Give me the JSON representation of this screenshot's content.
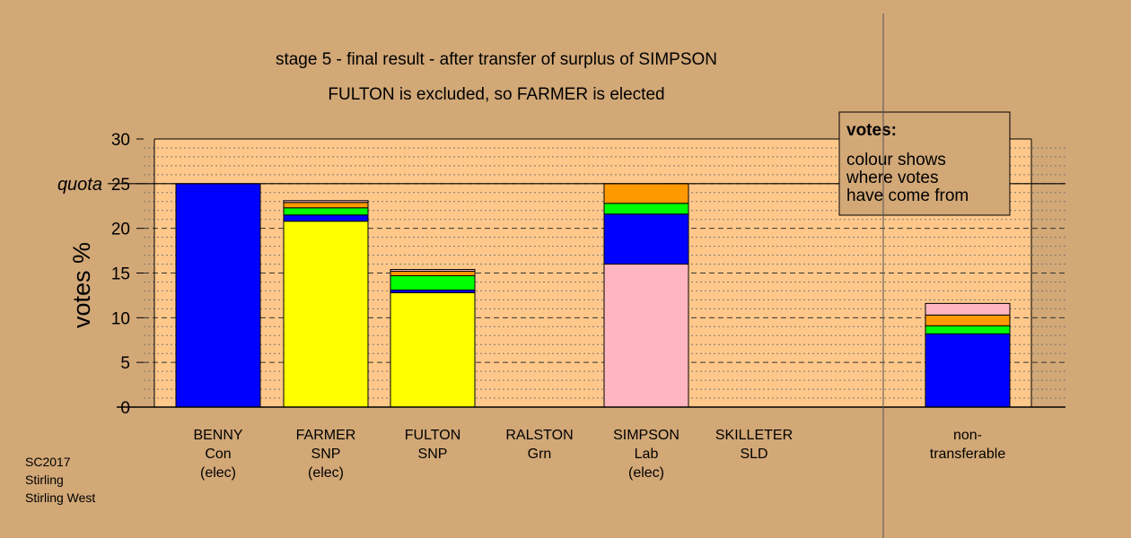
{
  "chart_data": {
    "type": "bar",
    "stacked": true,
    "title": "stage 5 - final result - after transfer of surplus of SIMPSON",
    "subtitle": "FULTON is excluded, so FARMER is elected",
    "ylabel": "votes %",
    "ylim": [
      0,
      30
    ],
    "yticks": [
      "0",
      "5",
      "10",
      "15",
      "20",
      "25",
      "30"
    ],
    "quota": {
      "label": "quota",
      "value": 25
    },
    "grid": true,
    "categories": [
      {
        "lines": [
          "BENNY",
          "Con",
          "(elec)"
        ]
      },
      {
        "lines": [
          "FARMER",
          "SNP",
          "(elec)"
        ]
      },
      {
        "lines": [
          "FULTON",
          "SNP"
        ]
      },
      {
        "lines": [
          "RALSTON",
          "Grn"
        ]
      },
      {
        "lines": [
          "SIMPSON",
          "Lab",
          "(elec)"
        ]
      },
      {
        "lines": [
          "SKILLETER",
          "SLD"
        ]
      },
      {
        "lines": [
          "non-",
          "transferable"
        ]
      }
    ],
    "bars": [
      {
        "segments": [
          {
            "color": "#0000ff",
            "value": 25.0
          }
        ]
      },
      {
        "segments": [
          {
            "color": "#ffff00",
            "value": 20.8
          },
          {
            "color": "#0000ff",
            "value": 0.7
          },
          {
            "color": "#00ff00",
            "value": 0.8
          },
          {
            "color": "#ff9900",
            "value": 0.6
          },
          {
            "color": "#ffb6c1",
            "value": 0.2
          }
        ]
      },
      {
        "segments": [
          {
            "color": "#ffff00",
            "value": 12.8
          },
          {
            "color": "#0000ff",
            "value": 0.3
          },
          {
            "color": "#00ff00",
            "value": 1.6
          },
          {
            "color": "#ff9900",
            "value": 0.5
          },
          {
            "color": "#ffb6c1",
            "value": 0.2
          }
        ]
      },
      {
        "segments": []
      },
      {
        "segments": [
          {
            "color": "#ffb6c1",
            "value": 16.0
          },
          {
            "color": "#0000ff",
            "value": 5.6
          },
          {
            "color": "#00ff00",
            "value": 1.2
          },
          {
            "color": "#ff9900",
            "value": 2.2
          }
        ]
      },
      {
        "segments": []
      },
      {
        "segments": [
          {
            "color": "#0000ff",
            "value": 8.2
          },
          {
            "color": "#00ff00",
            "value": 0.9
          },
          {
            "color": "#ff9900",
            "value": 1.2
          },
          {
            "color": "#ffb6c1",
            "value": 1.3
          }
        ]
      }
    ],
    "legend": {
      "title": "votes:",
      "lines": [
        "colour shows",
        "where votes",
        "have come from"
      ],
      "placement": "top-right"
    }
  },
  "footer": {
    "lines": [
      "SC2017",
      "Stirling",
      "Stirling West"
    ]
  },
  "colors": {
    "background": "#d2a877",
    "plot_area": "#ffc88a",
    "legend_box": "#d2a877"
  }
}
